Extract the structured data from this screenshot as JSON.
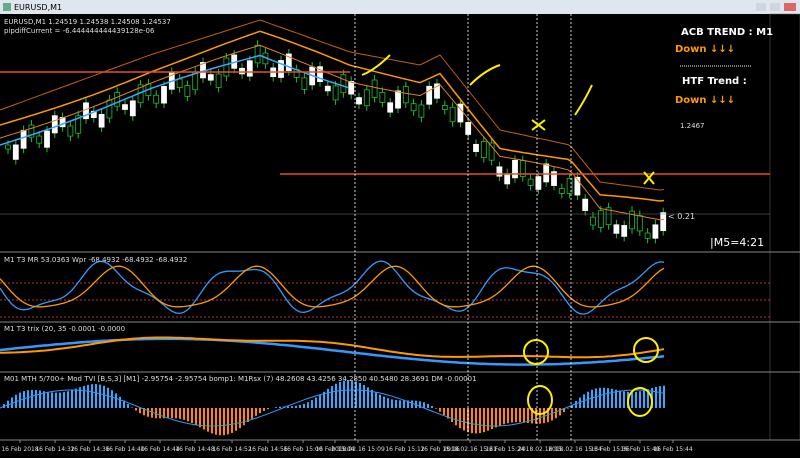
{
  "window": {
    "title": "EURUSD,M1"
  },
  "main_chart": {
    "header": "EURUSD,M1  1.24519 1.24538 1.24508 1.24537",
    "pipdiff": "pipdiffCurrent = -6.444444444439128e-06",
    "trend_panel": {
      "acb_label": "ACB TREND :  M1",
      "acb_value": "Down ↓↓↓",
      "htf_label": "HTF Trend :",
      "htf_value": "Down ↓↓↓"
    },
    "level_label": "1.2467",
    "spread_label": "< 0.21",
    "timer": "|M5=4:21"
  },
  "indicators": [
    {
      "header": "M1  T3 MR  53.0363  Wpr -68.4932 -68.4932 -68.4932"
    },
    {
      "header": "M1 T3 trix (20, 35 -0.0001 -0.0000"
    },
    {
      "header": "M01 MTH 5/700+ Mod TVI [B,S,3] [M1] -2.95754 -2.95754  bomp1: M1Rsx (7) 48.2608 43.4256 34.2850 40.5480 28.3691  DM -0.00001"
    }
  ],
  "time_axis": [
    "16 Feb 2018",
    "16 Feb 14:32",
    "16 Feb 14:36",
    "16 Feb 14:40",
    "16 Feb 14:44",
    "16 Feb 14:48",
    "16 Feb 14:52",
    "16 Feb 14:56",
    "16 Feb 15:00",
    "16 Feb 15:04",
    "2018.02.16 15:09",
    "16 Feb 15:12",
    "16 Feb 15:16",
    "2018.02.16 15:21",
    "16 Feb 15:24",
    "2018.02.16 15",
    "2018.02.16 15:34",
    "16 Feb 15:36",
    "16 Feb 15:40",
    "16 Feb 15:44"
  ]
}
